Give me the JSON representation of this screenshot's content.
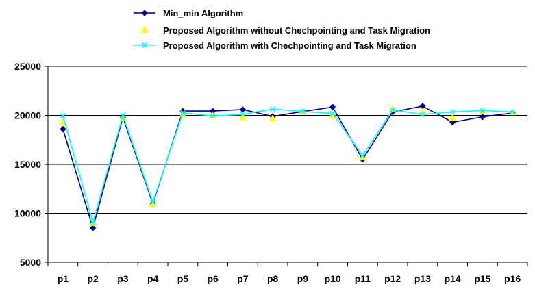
{
  "chart_data": {
    "type": "line",
    "title": "",
    "xlabel": "",
    "ylabel": "",
    "categories": [
      "p1",
      "p2",
      "p3",
      "p4",
      "p5",
      "p6",
      "p7",
      "p8",
      "p9",
      "p10",
      "p11",
      "p12",
      "p13",
      "p14",
      "p15",
      "p16"
    ],
    "ylim": [
      5000,
      25000
    ],
    "yticks": [
      5000,
      10000,
      15000,
      20000,
      25000
    ],
    "ytick_labels": [
      "5000",
      "10000",
      "15000",
      "20000",
      "25000"
    ],
    "grid": "horizontal",
    "legend_position": "top",
    "series": [
      {
        "name": "Min_min Algorithm",
        "color": "#000080",
        "marker": "diamond",
        "values": [
          18600,
          8500,
          19800,
          11000,
          20450,
          20450,
          20600,
          19900,
          20400,
          20850,
          15500,
          20350,
          20950,
          19300,
          19850,
          20250
        ]
      },
      {
        "name": "Proposed Algorithm without Chechpointing and Task Migration",
        "color": "#ffff00",
        "marker": "triangle",
        "values": [
          19300,
          9000,
          19700,
          10950,
          20100,
          20000,
          19800,
          19700,
          20400,
          20000,
          15700,
          20650,
          20350,
          19750,
          20400,
          20300
        ]
      },
      {
        "name": "Proposed Algorithm with Chechpointing and Task Migration",
        "color": "#00ffff",
        "marker": "x",
        "values": [
          19950,
          9100,
          20000,
          11150,
          20250,
          19950,
          20100,
          20650,
          20400,
          20200,
          15900,
          20550,
          20100,
          20350,
          20500,
          20350
        ]
      }
    ]
  }
}
